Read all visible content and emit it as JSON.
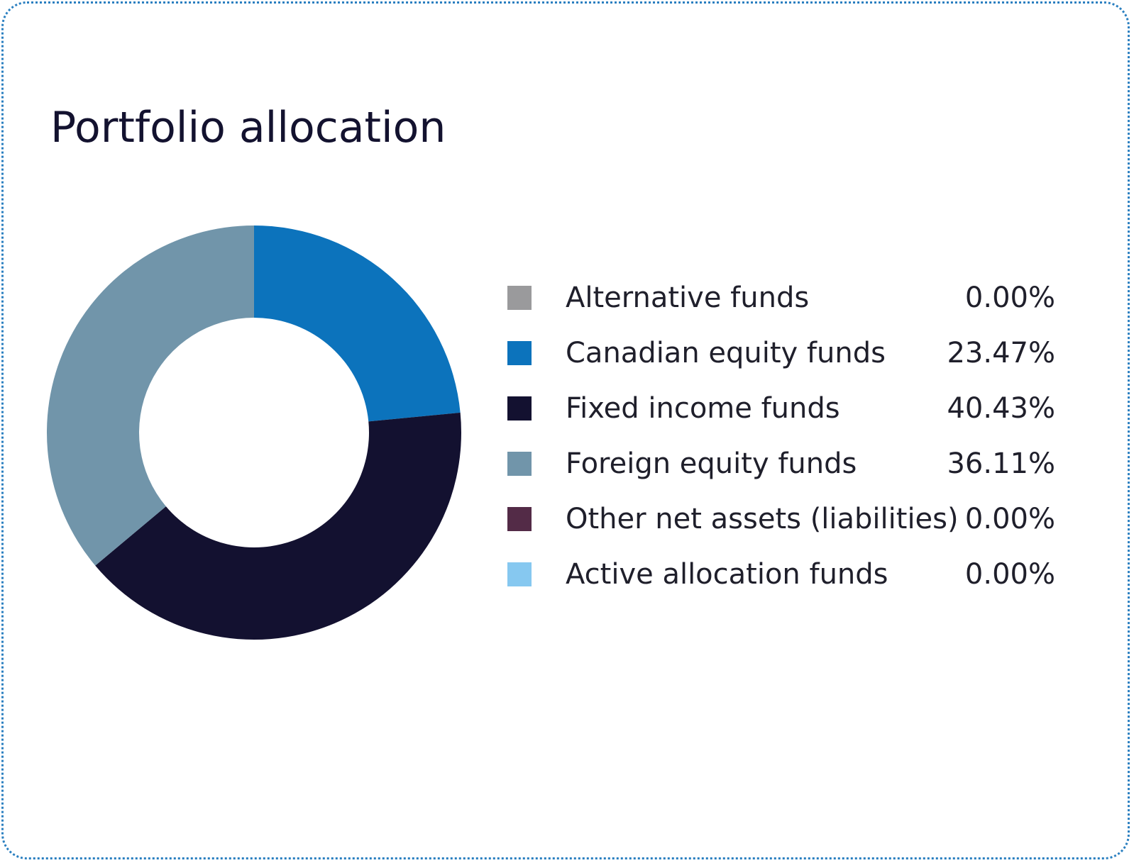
{
  "chart_data": {
    "type": "pie",
    "title": "Portfolio allocation",
    "donut": true,
    "legend_position": "right",
    "series": [
      {
        "name": "Alternative funds",
        "value": 0.0,
        "display": "0.00%",
        "color": "#9a9a9c"
      },
      {
        "name": "Canadian equity funds",
        "value": 23.47,
        "display": "23.47%",
        "color": "#0c73bc"
      },
      {
        "name": "Fixed income funds",
        "value": 40.43,
        "display": "40.43%",
        "color": "#131130"
      },
      {
        "name": "Foreign equity funds",
        "value": 36.11,
        "display": "36.11%",
        "color": "#7195aa"
      },
      {
        "name": "Other net assets (liabilities)",
        "value": 0.0,
        "display": "0.00%",
        "color": "#532b47"
      },
      {
        "name": "Active allocation funds",
        "value": 0.0,
        "display": "0.00%",
        "color": "#86c8f0"
      }
    ]
  }
}
